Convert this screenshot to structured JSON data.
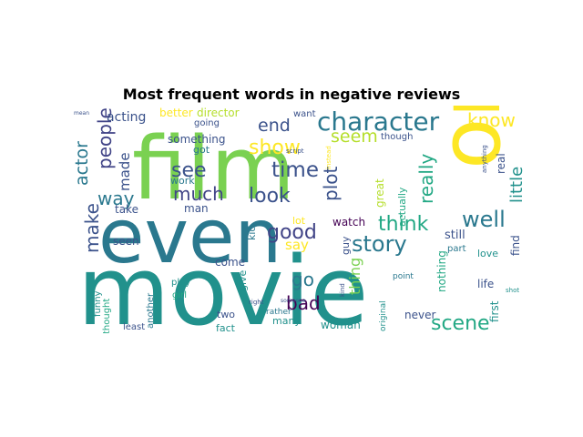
{
  "chart_data": {
    "type": "wordcloud",
    "title": "Most frequent words in negative reviews",
    "colormap": "viridis",
    "background": "#ffffff",
    "words": [
      {
        "text": "movie",
        "color": "#21918c"
      },
      {
        "text": "film",
        "color": "#7ad151"
      },
      {
        "text": "one",
        "color": "#fde725"
      },
      {
        "text": "even",
        "color": "#2a788e"
      },
      {
        "text": "character",
        "color": "#2a788e"
      },
      {
        "text": "time",
        "color": "#3b528b"
      },
      {
        "text": "see",
        "color": "#3b528b"
      },
      {
        "text": "much",
        "color": "#414487"
      },
      {
        "text": "story",
        "color": "#2a788e"
      },
      {
        "text": "show",
        "color": "#fde725"
      },
      {
        "text": "look",
        "color": "#3b528b"
      },
      {
        "text": "well",
        "color": "#2a788e"
      },
      {
        "text": "think",
        "color": "#22a884"
      },
      {
        "text": "good",
        "color": "#414487"
      },
      {
        "text": "plot",
        "color": "#3b528b"
      },
      {
        "text": "really",
        "color": "#22a884"
      },
      {
        "text": "scene",
        "color": "#22a884"
      },
      {
        "text": "know",
        "color": "#fde725"
      },
      {
        "text": "people",
        "color": "#414487"
      },
      {
        "text": "make",
        "color": "#3b528b"
      },
      {
        "text": "way",
        "color": "#2a788e"
      },
      {
        "text": "go",
        "color": "#2a788e"
      },
      {
        "text": "bad",
        "color": "#440154"
      },
      {
        "text": "actor",
        "color": "#2a788e"
      },
      {
        "text": "end",
        "color": "#3b528b"
      },
      {
        "text": "seem",
        "color": "#b5de2b"
      },
      {
        "text": "made",
        "color": "#3b528b"
      },
      {
        "text": "little",
        "color": "#21918c"
      },
      {
        "text": "thing",
        "color": "#7ad151"
      },
      {
        "text": "say",
        "color": "#fde725"
      },
      {
        "text": "acting",
        "color": "#3b528b"
      },
      {
        "text": "better",
        "color": "#fde725"
      },
      {
        "text": "director",
        "color": "#b5de2b"
      },
      {
        "text": "something",
        "color": "#3b528b"
      },
      {
        "text": "got",
        "color": "#2a788e"
      },
      {
        "text": "going",
        "color": "#3b528b"
      },
      {
        "text": "work",
        "color": "#2a788e"
      },
      {
        "text": "man",
        "color": "#3b528b"
      },
      {
        "text": "take",
        "color": "#3b528b"
      },
      {
        "text": "seen",
        "color": "#3b528b"
      },
      {
        "text": "lot",
        "color": "#fde725"
      },
      {
        "text": "watch",
        "color": "#440154"
      },
      {
        "text": "guy",
        "color": "#3b528b"
      },
      {
        "text": "come",
        "color": "#3b528b"
      },
      {
        "text": "kid",
        "color": "#2a788e"
      },
      {
        "text": "give",
        "color": "#21918c"
      },
      {
        "text": "two",
        "color": "#3b528b"
      },
      {
        "text": "fact",
        "color": "#21918c"
      },
      {
        "text": "many",
        "color": "#21918c"
      },
      {
        "text": "woman",
        "color": "#21918c"
      },
      {
        "text": "rather",
        "color": "#2a788e"
      },
      {
        "text": "great",
        "color": "#b5de2b"
      },
      {
        "text": "actually",
        "color": "#22a884"
      },
      {
        "text": "still",
        "color": "#3b528b"
      },
      {
        "text": "nothing",
        "color": "#22a884"
      },
      {
        "text": "never",
        "color": "#3b528b"
      },
      {
        "text": "part",
        "color": "#2a788e"
      },
      {
        "text": "love",
        "color": "#21918c"
      },
      {
        "text": "find",
        "color": "#3b528b"
      },
      {
        "text": "life",
        "color": "#3b528b"
      },
      {
        "text": "first",
        "color": "#21918c"
      },
      {
        "text": "real",
        "color": "#3b528b"
      },
      {
        "text": "though",
        "color": "#3b528b"
      },
      {
        "text": "want",
        "color": "#3b528b"
      },
      {
        "text": "play",
        "color": "#21918c"
      },
      {
        "text": "girl",
        "color": "#22a884"
      },
      {
        "text": "funny",
        "color": "#21918c"
      },
      {
        "text": "another",
        "color": "#2a788e"
      },
      {
        "text": "thought",
        "color": "#22a884"
      },
      {
        "text": "least",
        "color": "#3b528b"
      },
      {
        "text": "point",
        "color": "#2a788e"
      },
      {
        "text": "original",
        "color": "#21918c"
      },
      {
        "text": "kind",
        "color": "#3b528b"
      },
      {
        "text": "right",
        "color": "#3b528b"
      },
      {
        "text": "someone",
        "color": "#3b528b"
      },
      {
        "text": "script",
        "color": "#3b528b"
      },
      {
        "text": "instead",
        "color": "#fde725"
      },
      {
        "text": "anything",
        "color": "#3b528b"
      },
      {
        "text": "shot",
        "color": "#21918c"
      },
      {
        "text": "mean",
        "color": "#3b528b"
      }
    ]
  }
}
